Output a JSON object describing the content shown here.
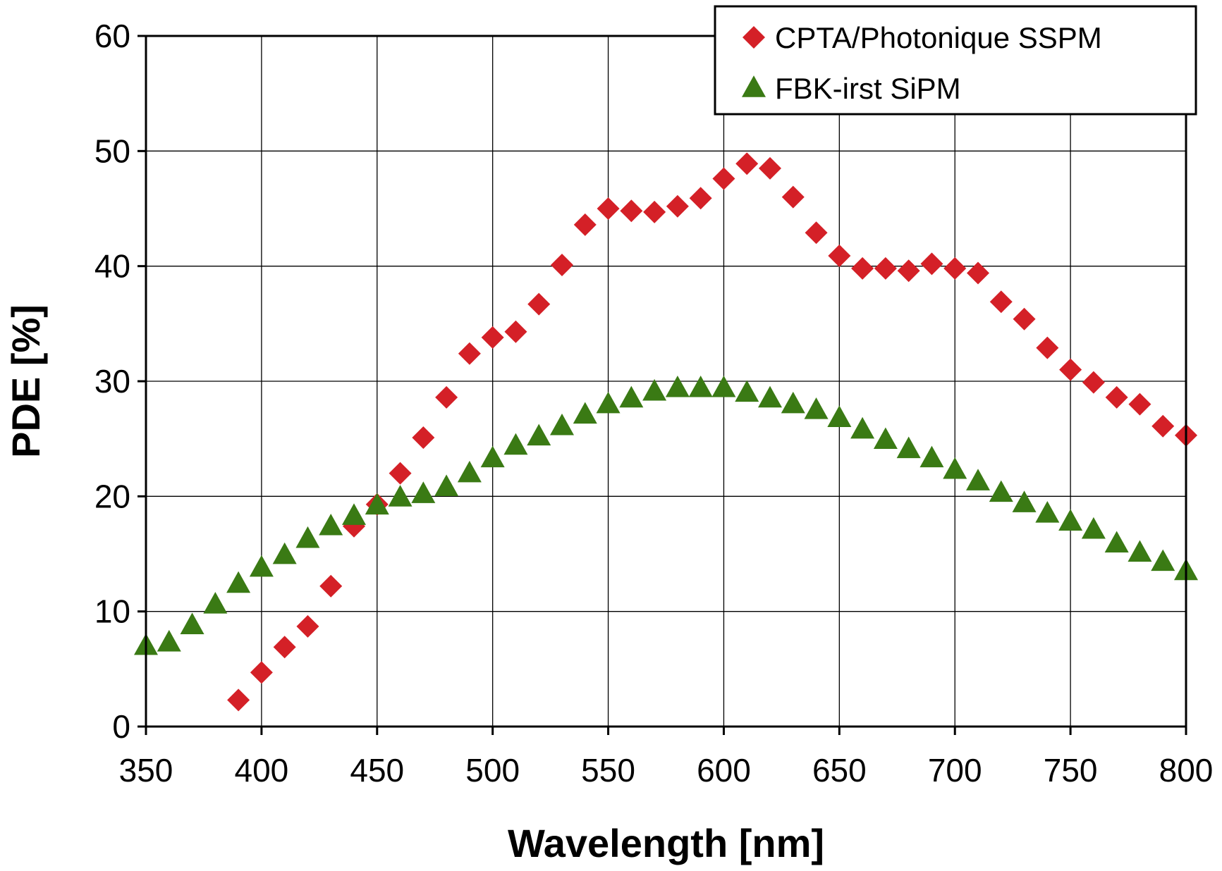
{
  "chart_data": {
    "type": "scatter",
    "xlabel": "Wavelength [nm]",
    "ylabel": "PDE [%]",
    "xlim": [
      350,
      800
    ],
    "ylim": [
      0,
      60
    ],
    "xticks": [
      350,
      400,
      450,
      500,
      550,
      600,
      650,
      700,
      750,
      800
    ],
    "yticks": [
      0,
      10,
      20,
      30,
      40,
      50,
      60
    ],
    "grid": true,
    "legend_position": "top-right",
    "series": [
      {
        "name": "CPTA/Photonique SSPM",
        "marker": "diamond",
        "color": "#d42027",
        "x": [
          390,
          400,
          410,
          420,
          430,
          440,
          450,
          460,
          470,
          480,
          490,
          500,
          510,
          520,
          530,
          540,
          550,
          560,
          570,
          580,
          590,
          600,
          610,
          620,
          630,
          640,
          650,
          660,
          670,
          680,
          690,
          700,
          710,
          720,
          730,
          740,
          750,
          760,
          770,
          780,
          790,
          800
        ],
        "y": [
          2.3,
          4.7,
          6.9,
          8.7,
          12.2,
          17.4,
          19.3,
          22.0,
          25.1,
          28.6,
          32.4,
          33.8,
          34.3,
          36.7,
          40.1,
          43.6,
          45.0,
          44.8,
          44.7,
          45.2,
          45.9,
          47.6,
          48.9,
          48.5,
          46.0,
          42.9,
          40.9,
          39.8,
          39.8,
          39.6,
          40.2,
          39.8,
          39.4,
          36.9,
          35.4,
          32.9,
          31.0,
          29.9,
          28.6,
          28.0,
          26.1,
          25.3
        ]
      },
      {
        "name": "FBK-irst SiPM",
        "marker": "triangle",
        "color": "#3a7a14",
        "x": [
          350,
          360,
          370,
          380,
          390,
          400,
          410,
          420,
          430,
          440,
          450,
          460,
          470,
          480,
          490,
          500,
          510,
          520,
          530,
          540,
          550,
          560,
          570,
          580,
          590,
          600,
          610,
          620,
          630,
          640,
          650,
          660,
          670,
          680,
          690,
          700,
          710,
          720,
          730,
          740,
          750,
          760,
          770,
          780,
          790,
          800
        ],
        "y": [
          7.0,
          7.3,
          8.8,
          10.6,
          12.4,
          13.8,
          14.9,
          16.3,
          17.4,
          18.3,
          19.2,
          19.9,
          20.2,
          20.8,
          22.0,
          23.3,
          24.4,
          25.2,
          26.1,
          27.1,
          28.0,
          28.5,
          29.1,
          29.4,
          29.4,
          29.4,
          29.0,
          28.5,
          28.0,
          27.5,
          26.8,
          25.8,
          24.9,
          24.1,
          23.3,
          22.3,
          21.3,
          20.3,
          19.4,
          18.5,
          17.8,
          17.1,
          15.9,
          15.1,
          14.3,
          13.5
        ]
      }
    ]
  }
}
